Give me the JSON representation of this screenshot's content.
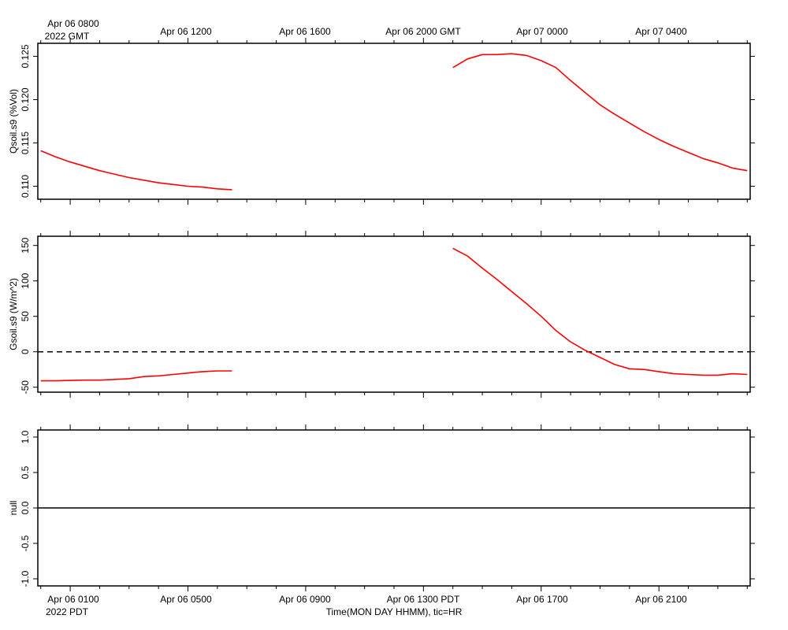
{
  "top_axis": {
    "corner_line1": "Apr 06 0800",
    "corner_line2": "2022 GMT",
    "labels": [
      "Apr 06 1200",
      "Apr 06 1600",
      "Apr 06 2000 GMT",
      "Apr 07 0000",
      "Apr 07 0400"
    ]
  },
  "bottom_axis": {
    "corner_line1": "Apr 06 0100",
    "corner_line2": "2022 PDT",
    "labels": [
      "Apr 06 0500",
      "Apr 06 0900",
      "Apr 06 1300 PDT",
      "Apr 06 1700",
      "Apr 06 2100"
    ],
    "title": "Time(MON DAY HHMM), tic=HR"
  },
  "colors": {
    "series": "#ff0000",
    "axes": "#000000"
  },
  "chart_data": [
    {
      "type": "line",
      "ylabel": "Qsoil.s9 (%Vol)",
      "x_unit": "hours since Apr 06 0000 PDT",
      "xlim": [
        -0.1,
        24.1
      ],
      "ylim": [
        0.1085,
        0.1265
      ],
      "yticks": [
        0.11,
        0.115,
        0.12,
        0.125
      ],
      "ytick_labels": [
        "0.110",
        "0.115",
        "0.120",
        "0.125"
      ],
      "grid": false,
      "series": [
        {
          "segments": [
            {
              "x": [
                0,
                0.5,
                1,
                1.5,
                2,
                2.5,
                3,
                3.5,
                4,
                4.5,
                5,
                5.5,
                6,
                6.5
              ],
              "y": [
                0.1141,
                0.1134,
                0.1128,
                0.1123,
                0.1118,
                0.1114,
                0.111,
                0.1107,
                0.1104,
                0.1102,
                0.11,
                0.1099,
                0.1097,
                0.1096
              ]
            },
            {
              "x": [
                14,
                14.5,
                15,
                15.5,
                16,
                16.5,
                17,
                17.5,
                18,
                18.5,
                19,
                19.5,
                20,
                20.5,
                21,
                21.5,
                22,
                22.5,
                23,
                23.5,
                24
              ],
              "y": [
                0.1237,
                0.1247,
                0.1252,
                0.1252,
                0.1253,
                0.1251,
                0.1245,
                0.1237,
                0.1222,
                0.1208,
                0.1194,
                0.1183,
                0.1173,
                0.1163,
                0.1154,
                0.1146,
                0.1139,
                0.1132,
                0.1127,
                0.1121,
                0.1118
              ]
            }
          ]
        }
      ]
    },
    {
      "type": "line",
      "ylabel": "Gsoil.s9 (W/m^2)",
      "x_unit": "hours since Apr 06 0000 PDT",
      "xlim": [
        -0.1,
        24.1
      ],
      "ylim": [
        -57,
        163
      ],
      "yticks": [
        -50,
        0,
        50,
        100,
        150
      ],
      "ytick_labels": [
        "-50",
        "0",
        "50",
        "100",
        "150"
      ],
      "reference_line": {
        "y": 0,
        "style": "dashed"
      },
      "grid": false,
      "series": [
        {
          "segments": [
            {
              "x": [
                0,
                0.5,
                1,
                1.5,
                2,
                2.5,
                3,
                3.5,
                4,
                4.5,
                5,
                5.5,
                6,
                6.5
              ],
              "y": [
                -41,
                -41,
                -40.5,
                -40,
                -40,
                -39,
                -38,
                -35,
                -34,
                -32,
                -30,
                -28,
                -27,
                -27
              ]
            },
            {
              "x": [
                14,
                14.5,
                15,
                15.5,
                16,
                16.5,
                17,
                17.5,
                18,
                18.5,
                19,
                19.5,
                20,
                20.5,
                21,
                21.5,
                22,
                22.5,
                23,
                23.5,
                24
              ],
              "y": [
                146,
                135,
                118,
                102,
                85,
                68,
                50,
                30,
                14,
                2,
                -8,
                -18,
                -24,
                -25,
                -28,
                -31,
                -32,
                -33,
                -33,
                -31,
                -32
              ]
            }
          ]
        }
      ]
    },
    {
      "type": "line",
      "ylabel": "null",
      "x_unit": "hours since Apr 06 0000 PDT",
      "xlim": [
        -0.1,
        24.1
      ],
      "ylim": [
        -1.1,
        1.1
      ],
      "yticks": [
        -1.0,
        -0.5,
        0.0,
        0.5,
        1.0
      ],
      "ytick_labels": [
        "-1.0",
        "-0.5",
        "0.0",
        "0.5",
        "1.0"
      ],
      "reference_line": {
        "y": 0,
        "style": "solid"
      },
      "grid": false,
      "series": []
    }
  ]
}
